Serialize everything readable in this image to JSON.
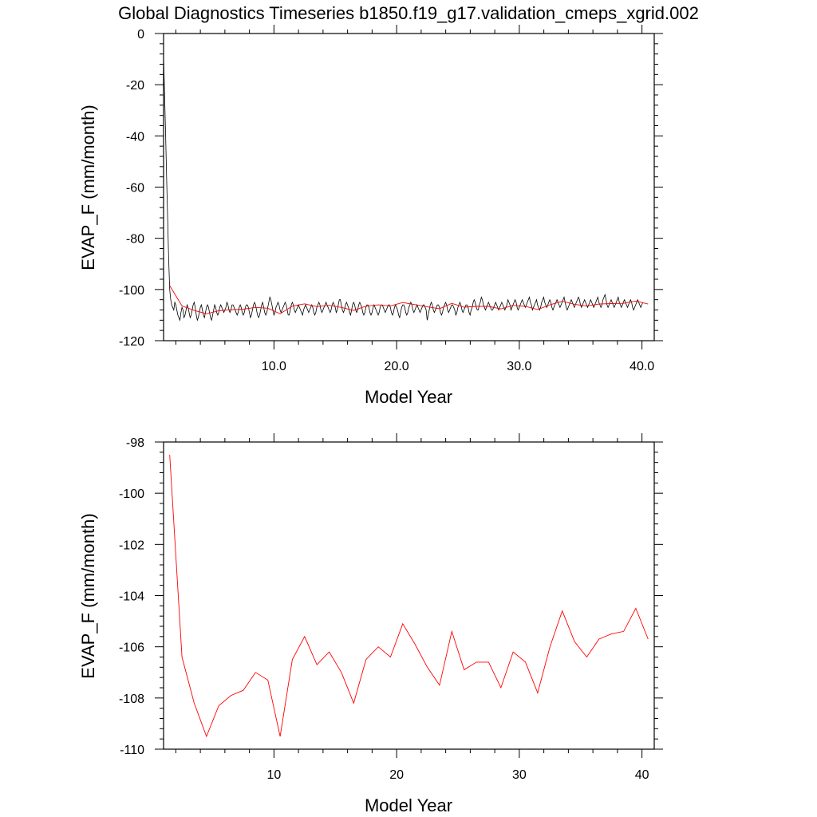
{
  "title": "Global Diagnostics Timeseries b1850.f19_g17.validation_cmeps_xgrid.002",
  "colors": {
    "monthly": "#000000",
    "annual": "#ff0000",
    "axes": "#000000"
  },
  "chart_data": [
    {
      "type": "line",
      "xlabel": "Model Year",
      "ylabel": "EVAP_F (mm/month)",
      "xlim": [
        1,
        41
      ],
      "ylim": [
        -120,
        0
      ],
      "x_ticks": [
        10,
        20,
        30,
        40
      ],
      "x_tick_labels": [
        "10.0",
        "20.0",
        "30.0",
        "40.0"
      ],
      "y_ticks": [
        0,
        -20,
        -40,
        -60,
        -80,
        -100,
        -120
      ],
      "y_tick_labels": [
        "0",
        "-20",
        "-40",
        "-60",
        "-80",
        "-100",
        "-120"
      ],
      "grid": false,
      "series": [
        {
          "color": "#000000",
          "note_type": "monthly",
          "x_start": 1.0,
          "x_step": 0.0833,
          "values": [
            -9,
            -24,
            -40,
            -56,
            -72,
            -88,
            -100,
            -104,
            -106,
            -107,
            -108,
            -105,
            -106,
            -108,
            -110,
            -111,
            -112,
            -109,
            -107,
            -108,
            -111,
            -110,
            -108,
            -106,
            -107,
            -109,
            -111,
            -110,
            -108,
            -106,
            -105,
            -107,
            -110,
            -112,
            -111,
            -109,
            -107,
            -106,
            -108,
            -110,
            -111,
            -109,
            -107,
            -106,
            -107,
            -109,
            -111,
            -112,
            -110,
            -108,
            -106,
            -107,
            -109,
            -110,
            -109,
            -107,
            -106,
            -107,
            -108,
            -109,
            -108,
            -107,
            -105,
            -106,
            -108,
            -109,
            -108,
            -106,
            -106,
            -107,
            -108,
            -109,
            -110,
            -109,
            -107,
            -106,
            -107,
            -109,
            -110,
            -109,
            -107,
            -106,
            -106,
            -107,
            -109,
            -111,
            -110,
            -108,
            -106,
            -105,
            -106,
            -108,
            -110,
            -111,
            -110,
            -108,
            -106,
            -105,
            -107,
            -109,
            -110,
            -109,
            -107,
            -105,
            -103,
            -104,
            -106,
            -108,
            -110,
            -109,
            -107,
            -106,
            -105,
            -106,
            -108,
            -109,
            -108,
            -107,
            -106,
            -105,
            -106,
            -108,
            -110,
            -110,
            -108,
            -106,
            -105,
            -106,
            -108,
            -109,
            -108,
            -107,
            -106,
            -107,
            -108,
            -109,
            -110,
            -108,
            -107,
            -106,
            -107,
            -108,
            -109,
            -108,
            -107,
            -106,
            -107,
            -109,
            -110,
            -109,
            -107,
            -106,
            -105,
            -106,
            -108,
            -109,
            -108,
            -107,
            -106,
            -105,
            -106,
            -107,
            -108,
            -109,
            -108,
            -106,
            -105,
            -106,
            -107,
            -109,
            -108,
            -106,
            -104,
            -104,
            -106,
            -108,
            -109,
            -108,
            -106,
            -105,
            -106,
            -107,
            -109,
            -110,
            -108,
            -106,
            -105,
            -106,
            -108,
            -109,
            -108,
            -106,
            -105,
            -106,
            -107,
            -109,
            -110,
            -109,
            -107,
            -106,
            -106,
            -107,
            -109,
            -110,
            -109,
            -107,
            -106,
            -107,
            -108,
            -109,
            -110,
            -109,
            -107,
            -106,
            -106,
            -107,
            -108,
            -109,
            -108,
            -107,
            -106,
            -106,
            -107,
            -109,
            -110,
            -109,
            -107,
            -106,
            -107,
            -108,
            -110,
            -111,
            -109,
            -107,
            -106,
            -106,
            -107,
            -109,
            -110,
            -109,
            -107,
            -106,
            -105,
            -106,
            -108,
            -109,
            -108,
            -107,
            -106,
            -107,
            -108,
            -109,
            -108,
            -107,
            -106,
            -106,
            -107,
            -108,
            -112,
            -110,
            -108,
            -106,
            -105,
            -106,
            -108,
            -109,
            -108,
            -107,
            -106,
            -106,
            -107,
            -109,
            -110,
            -109,
            -107,
            -106,
            -105,
            -106,
            -108,
            -109,
            -108,
            -107,
            -106,
            -106,
            -107,
            -108,
            -110,
            -109,
            -107,
            -106,
            -105,
            -106,
            -108,
            -109,
            -108,
            -107,
            -106,
            -106,
            -107,
            -109,
            -110,
            -108,
            -107,
            -105,
            -104,
            -105,
            -107,
            -108,
            -108,
            -106,
            -105,
            -103,
            -104,
            -106,
            -107,
            -108,
            -107,
            -106,
            -105,
            -106,
            -107,
            -108,
            -108,
            -107,
            -106,
            -105,
            -106,
            -107,
            -108,
            -107,
            -106,
            -105,
            -106,
            -107,
            -108,
            -107,
            -106,
            -104,
            -105,
            -106,
            -108,
            -107,
            -106,
            -105,
            -104,
            -105,
            -107,
            -108,
            -107,
            -106,
            -105,
            -104,
            -105,
            -106,
            -107,
            -106,
            -105,
            -104,
            -103,
            -105,
            -106,
            -108,
            -107,
            -106,
            -105,
            -104,
            -106,
            -107,
            -108,
            -107,
            -105,
            -104,
            -103,
            -105,
            -106,
            -107,
            -106,
            -105,
            -104,
            -105,
            -107,
            -108,
            -107,
            -106,
            -105,
            -104,
            -105,
            -106,
            -107,
            -106,
            -105,
            -104,
            -103,
            -105,
            -107,
            -108,
            -107,
            -106,
            -105,
            -104,
            -105,
            -106,
            -107,
            -106,
            -105,
            -104,
            -103,
            -104,
            -106,
            -107,
            -106,
            -105,
            -104,
            -105,
            -106,
            -107,
            -106,
            -105,
            -104,
            -105,
            -106,
            -107,
            -106,
            -105,
            -104,
            -103,
            -105,
            -106,
            -107,
            -106,
            -104,
            -103,
            -102,
            -104,
            -106,
            -107,
            -106,
            -105,
            -104,
            -105,
            -106,
            -107,
            -106,
            -105,
            -104,
            -103,
            -105,
            -106,
            -107,
            -106,
            -105,
            -104,
            -105,
            -106,
            -107,
            -106,
            -105,
            -104,
            -105,
            -107,
            -108,
            -107,
            -106,
            -105,
            -104,
            -105,
            -106,
            -107,
            -106,
            -105
          ]
        },
        {
          "color": "#ff0000",
          "note_type": "annual",
          "x": [
            1.5,
            2.5,
            3.5,
            4.5,
            5.5,
            6.5,
            7.5,
            8.5,
            9.5,
            10.5,
            11.5,
            12.5,
            13.5,
            14.5,
            15.5,
            16.5,
            17.5,
            18.5,
            19.5,
            20.5,
            21.5,
            22.5,
            23.5,
            24.5,
            25.5,
            26.5,
            27.5,
            28.5,
            29.5,
            30.5,
            31.5,
            32.5,
            33.5,
            34.5,
            35.5,
            36.5,
            37.5,
            38.5,
            39.5,
            40.5
          ],
          "values": [
            -98.5,
            -106.4,
            -108.2,
            -109.5,
            -108.3,
            -107.9,
            -107.7,
            -107.0,
            -107.3,
            -109.5,
            -106.5,
            -105.6,
            -106.7,
            -106.2,
            -107.0,
            -108.2,
            -106.5,
            -106.0,
            -106.4,
            -105.1,
            -105.9,
            -106.8,
            -107.5,
            -105.4,
            -106.9,
            -106.6,
            -106.6,
            -107.6,
            -106.2,
            -106.6,
            -107.8,
            -106.0,
            -104.6,
            -105.8,
            -106.4,
            -105.7,
            -105.5,
            -105.4,
            -104.5,
            -105.7
          ]
        }
      ]
    },
    {
      "type": "line",
      "xlabel": "Model Year",
      "ylabel": "EVAP_F (mm/month)",
      "xlim": [
        1,
        41
      ],
      "ylim": [
        -110,
        -98
      ],
      "x_ticks": [
        10,
        20,
        30,
        40
      ],
      "x_tick_labels": [
        "10",
        "20",
        "30",
        "40"
      ],
      "y_ticks": [
        -98,
        -100,
        -102,
        -104,
        -106,
        -108,
        -110
      ],
      "y_tick_labels": [
        "-98",
        "-100",
        "-102",
        "-104",
        "-106",
        "-108",
        "-110"
      ],
      "grid": false,
      "series": [
        {
          "color": "#ff0000",
          "note_type": "annual",
          "x": [
            1.5,
            2.5,
            3.5,
            4.5,
            5.5,
            6.5,
            7.5,
            8.5,
            9.5,
            10.5,
            11.5,
            12.5,
            13.5,
            14.5,
            15.5,
            16.5,
            17.5,
            18.5,
            19.5,
            20.5,
            21.5,
            22.5,
            23.5,
            24.5,
            25.5,
            26.5,
            27.5,
            28.5,
            29.5,
            30.5,
            31.5,
            32.5,
            33.5,
            34.5,
            35.5,
            36.5,
            37.5,
            38.5,
            39.5,
            40.5
          ],
          "values": [
            -98.5,
            -106.4,
            -108.2,
            -109.5,
            -108.3,
            -107.9,
            -107.7,
            -107.0,
            -107.3,
            -109.5,
            -106.5,
            -105.6,
            -106.7,
            -106.2,
            -107.0,
            -108.2,
            -106.5,
            -106.0,
            -106.4,
            -105.1,
            -105.9,
            -106.8,
            -107.5,
            -105.4,
            -106.9,
            -106.6,
            -106.6,
            -107.6,
            -106.2,
            -106.6,
            -107.8,
            -106.0,
            -104.6,
            -105.8,
            -106.4,
            -105.7,
            -105.5,
            -105.4,
            -104.5,
            -105.7
          ]
        }
      ]
    }
  ]
}
